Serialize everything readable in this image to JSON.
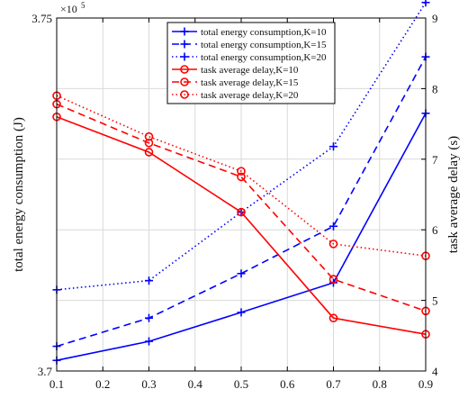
{
  "chart_data": {
    "type": "line",
    "x": [
      0.1,
      0.3,
      0.5,
      0.7,
      0.9
    ],
    "xticks": [
      "0.1",
      "0.2",
      "0.3",
      "0.4",
      "0.5",
      "0.6",
      "0.7",
      "0.8",
      "0.9"
    ],
    "xlim": [
      0.1,
      0.9
    ],
    "ylabel_left": "total energy consumption (J)",
    "ylabel_right": "task average delay (s)",
    "ylim_left": [
      3.7,
      3.75
    ],
    "ylim_right": [
      4,
      9
    ],
    "yticks_left": [
      "3.7",
      "3.75"
    ],
    "yticks_right": [
      "4",
      "5",
      "6",
      "7",
      "8",
      "9"
    ],
    "left_exponent_base": "×10",
    "left_exponent_power": "5",
    "grid": true,
    "legend_position": "top-right",
    "series": [
      {
        "name": "total energy consumption,K=10",
        "axis": "left",
        "color": "#0000ff",
        "dash": "solid",
        "marker": "plus",
        "values": [
          3.7015,
          3.7042,
          3.7083,
          3.7125,
          3.7365
        ]
      },
      {
        "name": "total energy consumption,K=15",
        "axis": "left",
        "color": "#0000ff",
        "dash": "dashed",
        "marker": "plus",
        "values": [
          3.7035,
          3.7075,
          3.7138,
          3.7205,
          3.7445
        ]
      },
      {
        "name": "total energy consumption,K=20",
        "axis": "left",
        "color": "#0000ff",
        "dash": "dotted",
        "marker": "plus",
        "values": [
          3.7115,
          3.7128,
          3.7225,
          3.7318,
          3.7522
        ]
      },
      {
        "name": "task average delay,K=10",
        "axis": "right",
        "color": "#ff0000",
        "dash": "solid",
        "marker": "circle",
        "values": [
          7.6,
          7.1,
          6.25,
          4.75,
          4.52
        ]
      },
      {
        "name": "task average delay,K=15",
        "axis": "right",
        "color": "#ff0000",
        "dash": "dashed",
        "marker": "circle",
        "values": [
          7.78,
          7.23,
          6.75,
          5.3,
          4.85
        ]
      },
      {
        "name": "task average delay,K=20",
        "axis": "right",
        "color": "#ff0000",
        "dash": "dotted",
        "marker": "circle",
        "values": [
          7.9,
          7.32,
          6.83,
          5.8,
          5.63
        ]
      }
    ]
  }
}
